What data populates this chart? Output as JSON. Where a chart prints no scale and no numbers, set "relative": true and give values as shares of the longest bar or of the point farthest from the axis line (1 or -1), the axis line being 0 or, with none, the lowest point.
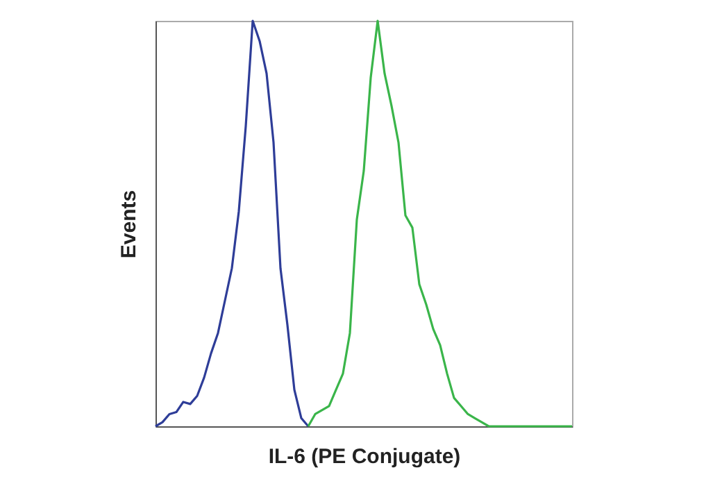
{
  "chart_data": {
    "type": "line",
    "relative": true,
    "xlabel": "IL-6 (PE Conjugate)",
    "ylabel": "Events",
    "tick_labels": false,
    "grid": false,
    "legend": false,
    "categories": [
      null,
      null,
      null,
      null,
      null,
      null,
      null,
      null,
      null,
      null,
      null,
      null,
      null,
      null,
      null,
      null,
      null,
      null,
      null,
      null,
      null,
      null,
      null,
      null,
      null,
      null,
      null,
      null,
      null,
      null,
      null,
      null,
      null,
      null,
      null,
      null,
      null,
      null,
      null,
      null,
      null,
      null,
      null,
      null,
      null,
      null,
      null,
      null,
      null,
      null,
      null,
      null,
      null,
      null,
      null,
      null,
      null,
      null,
      null,
      null,
      null
    ],
    "series": [
      {
        "color": "#2e3d98",
        "values": [
          0,
          0.01,
          0.03,
          0.035,
          0.06,
          0.055,
          0.075,
          0.12,
          0.18,
          0.23,
          0.31,
          0.39,
          0.53,
          0.74,
          1.0,
          0.95,
          0.87,
          0.7,
          0.39,
          0.25,
          0.09,
          0.02,
          0,
          null,
          null,
          null,
          null,
          null,
          null,
          null,
          null,
          null,
          null,
          null,
          null,
          null,
          null,
          null,
          null,
          null,
          null,
          null,
          null,
          null,
          null,
          null,
          null,
          null,
          null,
          null,
          null,
          null,
          null,
          null,
          null,
          null,
          null,
          null,
          null,
          null,
          null
        ]
      },
      {
        "color": "#3ab54a",
        "values": [
          null,
          null,
          null,
          null,
          null,
          null,
          null,
          null,
          null,
          null,
          null,
          null,
          null,
          null,
          null,
          null,
          null,
          null,
          null,
          null,
          null,
          null,
          0,
          0.03,
          0.04,
          0.05,
          0.09,
          0.13,
          0.23,
          0.51,
          0.63,
          0.86,
          1.0,
          0.87,
          0.79,
          0.7,
          0.52,
          0.49,
          0.35,
          0.3,
          0.24,
          0.2,
          0.13,
          0.07,
          0.05,
          0.03,
          0.02,
          0.01,
          0,
          0,
          0,
          0,
          0,
          0,
          0,
          0,
          0,
          0,
          0,
          0,
          0
        ]
      }
    ]
  }
}
